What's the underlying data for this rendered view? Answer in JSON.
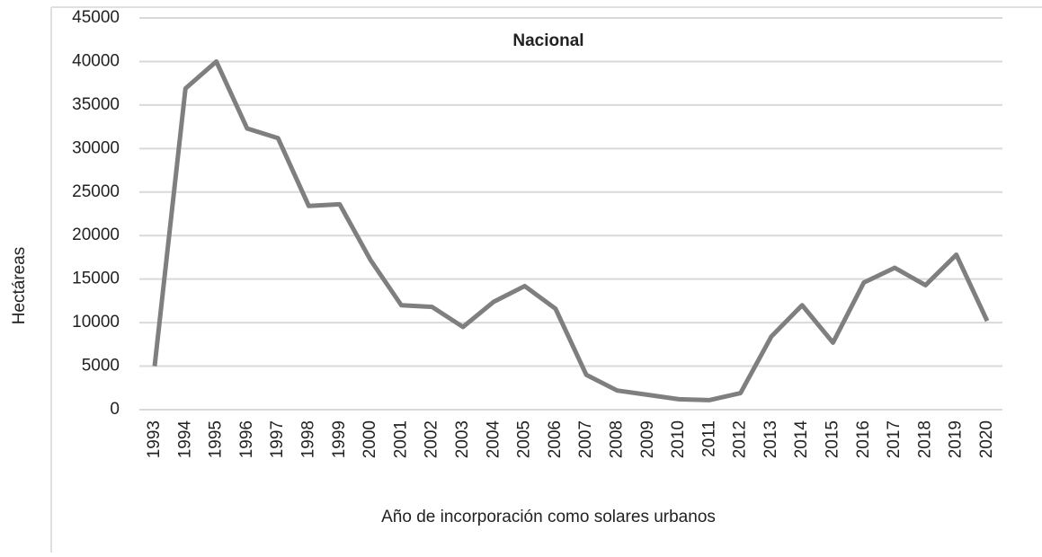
{
  "chart_data": {
    "type": "line",
    "title": "Nacional",
    "y_label": "Hectáreas",
    "x_label": "Año de incorporación como solares urbanos",
    "categories": [
      "1993",
      "1994",
      "1995",
      "1996",
      "1997",
      "1998",
      "1999",
      "2000",
      "2001",
      "2002",
      "2003",
      "2004",
      "2005",
      "2006",
      "2007",
      "2008",
      "2009",
      "2010",
      "2011",
      "2012",
      "2013",
      "2014",
      "2015",
      "2016",
      "2017",
      "2018",
      "2019",
      "2020"
    ],
    "series": [
      {
        "name": "Nacional",
        "color": "#7f7f7f",
        "values": [
          5000,
          36900,
          40000,
          32300,
          31200,
          23400,
          23600,
          17200,
          12000,
          11800,
          9500,
          12400,
          14200,
          11600,
          4000,
          2200,
          1700,
          1200,
          1100,
          1900,
          8400,
          12000,
          7700,
          14600,
          16300,
          14300,
          17800,
          10200
        ]
      }
    ],
    "ylim": [
      0,
      45000
    ],
    "yticks": [
      0,
      5000,
      10000,
      15000,
      20000,
      25000,
      30000,
      35000,
      40000,
      45000
    ],
    "grid": true
  }
}
